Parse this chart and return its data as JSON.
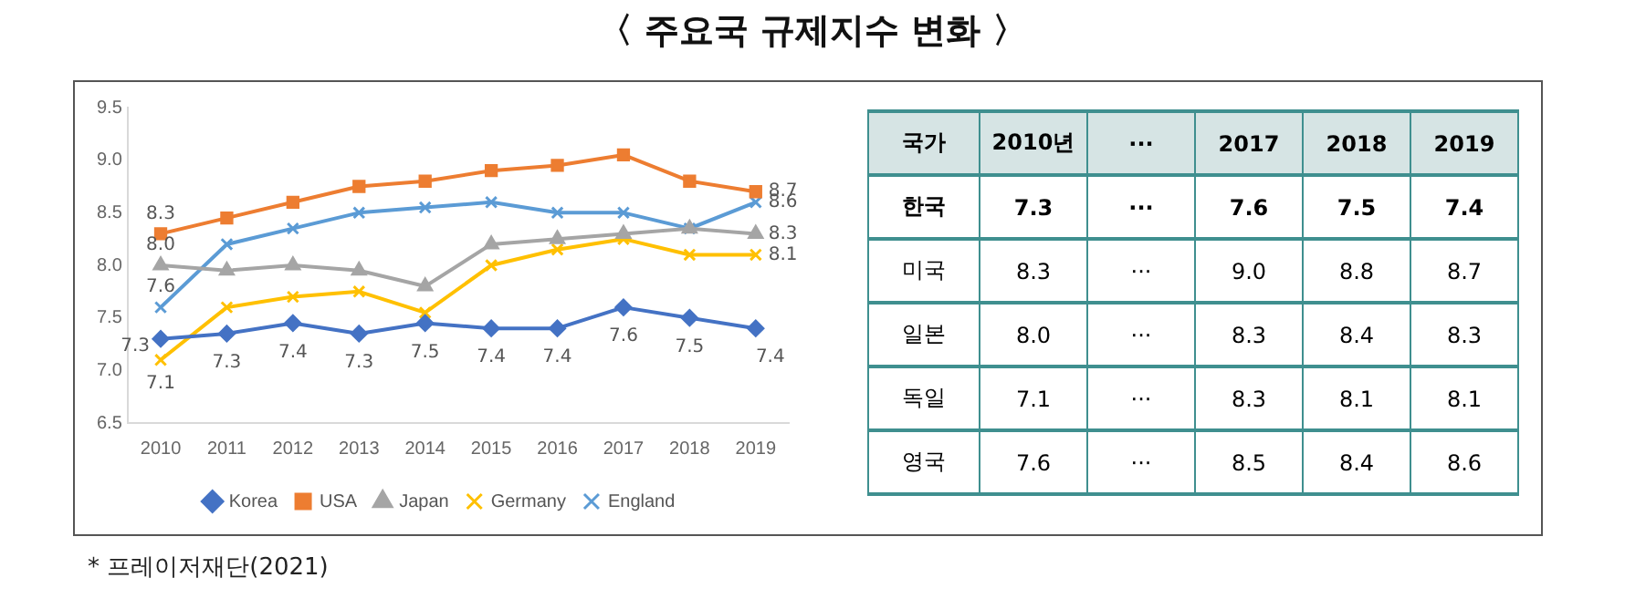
{
  "chart_data": [
    {
      "type": "line",
      "title": "〈 주요국 규제지수 변화 〉",
      "categories": [
        "2010",
        "2011",
        "2012",
        "2013",
        "2014",
        "2015",
        "2016",
        "2017",
        "2018",
        "2019"
      ],
      "series": [
        {
          "name": "Korea",
          "color": "#4472c4",
          "marker": "diamond",
          "values": [
            7.3,
            7.35,
            7.45,
            7.35,
            7.45,
            7.4,
            7.4,
            7.6,
            7.5,
            7.4
          ],
          "value_labels": [
            "7.3",
            "7.3",
            "7.4",
            "7.3",
            "7.5",
            "7.4",
            "7.4",
            "7.6",
            "7.5",
            "7.4"
          ]
        },
        {
          "name": "USA",
          "color": "#ed7d31",
          "marker": "square",
          "values": [
            8.3,
            8.45,
            8.6,
            8.75,
            8.8,
            8.9,
            8.95,
            9.05,
            8.8,
            8.7
          ],
          "value_labels": [
            "8.3",
            null,
            null,
            null,
            null,
            null,
            null,
            null,
            null,
            "8.7"
          ]
        },
        {
          "name": "Japan",
          "color": "#a5a5a5",
          "marker": "triangle",
          "values": [
            8.0,
            7.95,
            8.0,
            7.95,
            7.8,
            8.2,
            8.25,
            8.3,
            8.35,
            8.3
          ],
          "value_labels": [
            "8.0",
            null,
            null,
            null,
            null,
            null,
            null,
            null,
            null,
            "8.3"
          ]
        },
        {
          "name": "Germany",
          "color": "#ffc000",
          "marker": "cross",
          "values": [
            7.1,
            7.6,
            7.7,
            7.75,
            7.55,
            8.0,
            8.15,
            8.25,
            8.1,
            8.1
          ],
          "value_labels": [
            "7.1",
            null,
            null,
            null,
            null,
            null,
            null,
            null,
            null,
            "8.1"
          ]
        },
        {
          "name": "England",
          "color": "#5b9bd5",
          "marker": "cross",
          "values": [
            7.6,
            8.2,
            8.35,
            8.5,
            8.55,
            8.6,
            8.5,
            8.5,
            8.35,
            8.6
          ],
          "value_labels": [
            "7.6",
            null,
            null,
            null,
            null,
            null,
            null,
            null,
            null,
            "8.6"
          ]
        }
      ],
      "ylim": [
        6.5,
        9.5
      ],
      "yticks": [
        6.5,
        {
          "value": 7,
          "label": "7.0"
        },
        7.5,
        {
          "value": 8,
          "label": "8.0"
        },
        8.5,
        {
          "value": 9,
          "label": "9.0"
        },
        9.5
      ],
      "grid": false,
      "legend": "bottom",
      "line_style": "solid",
      "annotations": [
        "* 프레이저재단(2021)"
      ]
    },
    {
      "type": "other",
      "ylabel": "국가",
      "categories": [
        "2010년",
        "···",
        "2017",
        "2018",
        "2019"
      ],
      "y_categories": [
        "한국",
        "미국",
        "일본",
        "독일",
        "영국"
      ],
      "cell_labels": [
        [
          "7.3",
          "···",
          "7.6",
          "7.5",
          "7.4"
        ],
        [
          "8.3",
          "···",
          "9.0",
          "8.8",
          "8.7"
        ],
        [
          "8.0",
          "···",
          "8.3",
          "8.4",
          "8.3"
        ],
        [
          "7.1",
          "···",
          "8.3",
          "8.1",
          "8.1"
        ],
        [
          "7.6",
          "···",
          "8.5",
          "8.4",
          "8.6"
        ]
      ]
    }
  ]
}
